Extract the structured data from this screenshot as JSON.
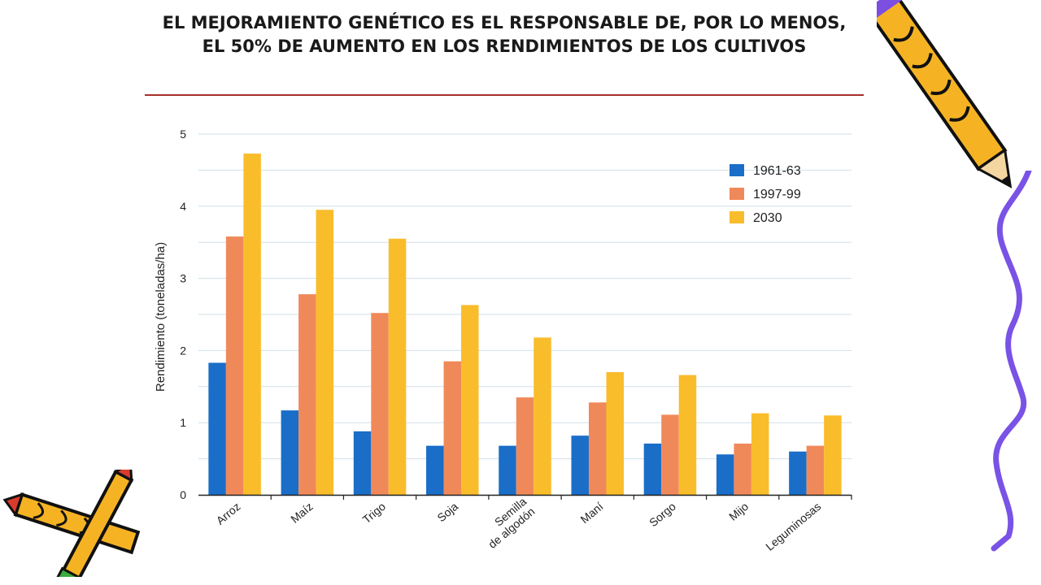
{
  "slide": {
    "title": "EL MEJORAMIENTO GENÉTICO ES EL RESPONSABLE DE, POR LO MENOS, EL 50% DE AUMENTO EN LOS RENDIMIENTOS DE LOS CULTIVOS"
  },
  "decorations": {
    "top_right": "pencil-icon",
    "bottom_left": "crossed-pencils-icon",
    "right_edge": "purple-squiggle"
  },
  "chart_data": {
    "type": "bar",
    "title": "",
    "xlabel": "",
    "ylabel": "Rendimiento (toneladas/ha)",
    "ylim": [
      0,
      5
    ],
    "yticks": [
      0,
      1,
      2,
      3,
      4,
      5
    ],
    "grid": true,
    "legend_position": "top-right",
    "categories": [
      "Arroz",
      "Maíz",
      "Trigo",
      "Soja",
      "Semilla de algodón",
      "Maní",
      "Sorgo",
      "Mijo",
      "Leguminosas"
    ],
    "series": [
      {
        "name": "1961-63",
        "color": "#1a6ec8",
        "values": [
          1.83,
          1.17,
          0.88,
          0.68,
          0.68,
          0.82,
          0.71,
          0.56,
          0.6
        ]
      },
      {
        "name": "1997-99",
        "color": "#f0895a",
        "values": [
          3.58,
          2.78,
          2.52,
          1.85,
          1.35,
          1.28,
          1.11,
          0.71,
          0.68
        ]
      },
      {
        "name": "2030",
        "color": "#f9bd2b",
        "values": [
          4.73,
          3.95,
          3.55,
          2.63,
          2.18,
          1.7,
          1.66,
          1.13,
          1.1
        ]
      }
    ]
  }
}
